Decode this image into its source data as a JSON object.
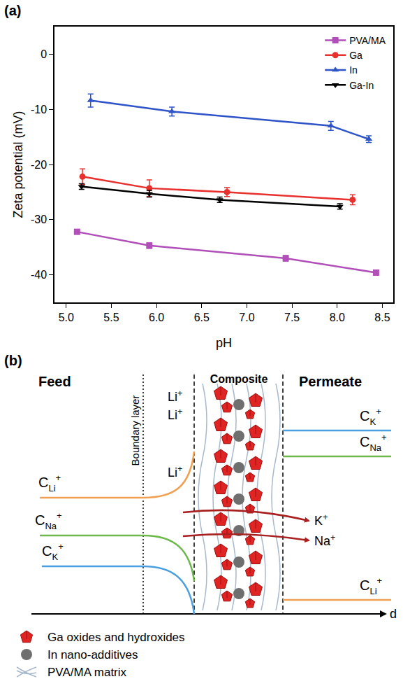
{
  "chart_data": {
    "type": "line",
    "annotations": [
      "(a)"
    ],
    "x_label": "pH",
    "y_label": "Zeta potential (mV)",
    "xlim": [
      4.87,
      8.62
    ],
    "xticks": [
      {
        "value": 5.0,
        "label": "5.0"
      },
      {
        "value": 5.5,
        "label": "5.5"
      },
      {
        "value": 6.0,
        "label": "6.0"
      },
      {
        "value": 6.5,
        "label": "6.5"
      },
      {
        "value": 7.0,
        "label": "7.0"
      },
      {
        "value": 7.5,
        "label": "7.5"
      },
      {
        "value": 8.0,
        "label": "8.0"
      },
      {
        "value": 8.5,
        "label": "8.5"
      }
    ],
    "ylim": [
      -45,
      5
    ],
    "yticks": [
      -40,
      -30,
      -20,
      -10,
      0
    ],
    "grid": false,
    "legend": "upper right",
    "series": [
      {
        "name": "PVA/MA",
        "color": "#b04fb8",
        "marker": "square",
        "x": [
          5.12,
          5.92,
          7.43,
          8.43
        ],
        "values": [
          -32.2,
          -34.7,
          -37.0,
          -39.6
        ],
        "errors": [
          0.4,
          0.5,
          0.5,
          0.4
        ]
      },
      {
        "name": "Ga",
        "color": "#e8312f",
        "marker": "circle",
        "x": [
          5.18,
          5.92,
          6.78,
          8.17
        ],
        "values": [
          -22.2,
          -24.3,
          -25.0,
          -26.4
        ],
        "errors": [
          1.4,
          1.5,
          0.8,
          0.9
        ]
      },
      {
        "name": "In",
        "color": "#2f54c8",
        "marker": "triangle-up",
        "x": [
          5.27,
          6.17,
          7.93,
          8.35
        ],
        "values": [
          -8.4,
          -10.4,
          -13.0,
          -15.4
        ],
        "errors": [
          1.2,
          0.8,
          0.8,
          0.6
        ]
      },
      {
        "name": "Ga-In",
        "color": "#000000",
        "marker": "triangle-down",
        "x": [
          5.17,
          5.92,
          6.7,
          8.03
        ],
        "values": [
          -24.0,
          -25.3,
          -26.4,
          -27.6
        ],
        "errors": [
          0.5,
          0.6,
          0.5,
          0.5
        ]
      }
    ]
  },
  "diagram": {
    "label": "(b)",
    "regions": {
      "feed": "Feed",
      "boundary_layer": "Boundary layer",
      "composite": "Composite",
      "permeate": "Permeate"
    },
    "axis_label": "d",
    "concentration_symbol": "C",
    "ions": {
      "Li": {
        "symbol": "Li",
        "charge": "+",
        "color": "#f0a050"
      },
      "Na": {
        "symbol": "Na",
        "charge": "+",
        "color": "#6cb84a"
      },
      "K": {
        "symbol": "K",
        "charge": "+",
        "color": "#4a9fe0"
      }
    },
    "retained_ion_labels": [
      "Li",
      "Li",
      "Li"
    ],
    "permeating_ions": [
      "K",
      "Na"
    ],
    "legend": [
      {
        "icon": "ga",
        "text": "Ga oxides and hydroxides"
      },
      {
        "icon": "in",
        "text": "In nano-additives"
      },
      {
        "icon": "matrix",
        "text": "PVA/MA matrix"
      }
    ]
  }
}
